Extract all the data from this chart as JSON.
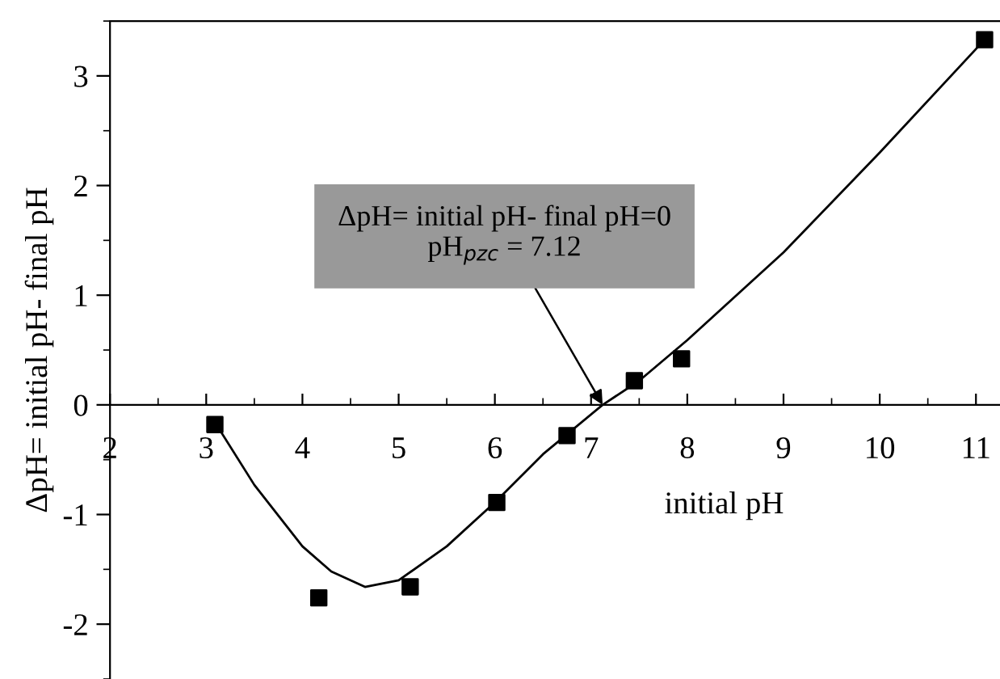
{
  "chart_data": {
    "type": "scatter",
    "xlabel": "initial pH",
    "ylabel": "ΔpH= initial pH- final pH",
    "xlim": [
      2,
      11.25
    ],
    "ylim": [
      -2.5,
      3.5
    ],
    "xticks": [
      2,
      3,
      4,
      5,
      6,
      7,
      8,
      9,
      10,
      11
    ],
    "yticks": [
      -2,
      -1,
      0,
      1,
      2,
      3
    ],
    "grid": false,
    "legend": false,
    "annotations": [
      {
        "text": "ΔpH= initial pH- final pH=0\npH$_{pzc}$ = 7.12",
        "x": 7.12,
        "y": 0
      }
    ],
    "series": [
      {
        "marker": "square",
        "color": "#000000",
        "x": [
          3.09,
          4.17,
          5.12,
          6.02,
          6.75,
          7.45,
          7.94,
          11.09
        ],
        "values": [
          -0.18,
          -1.76,
          -1.66,
          -0.89,
          -0.28,
          0.22,
          0.42,
          3.33
        ]
      },
      {
        "type": "line",
        "marker": "none",
        "color": "#000000",
        "x": [
          3.12,
          3.5,
          4.0,
          4.3,
          4.65,
          5.0,
          5.5,
          6.0,
          6.5,
          7.12,
          7.5,
          8.0,
          9.0,
          10.0,
          11.09
        ],
        "values": [
          -0.2,
          -0.73,
          -1.29,
          -1.52,
          -1.66,
          -1.6,
          -1.29,
          -0.89,
          -0.45,
          0.0,
          0.22,
          0.59,
          1.39,
          2.3,
          3.33
        ]
      }
    ]
  }
}
